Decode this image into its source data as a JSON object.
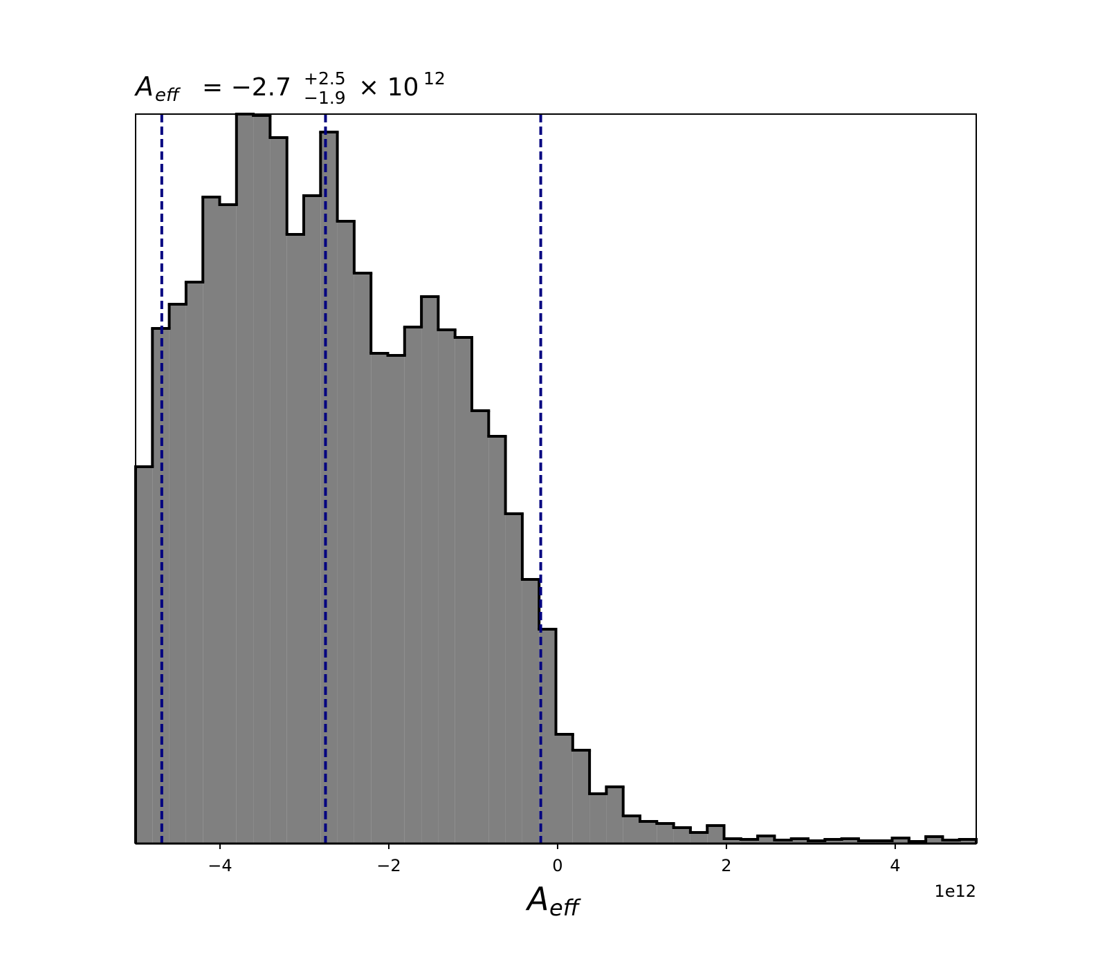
{
  "chart_data": {
    "type": "histogram",
    "title": {
      "symbol": "A",
      "subscript": "eff",
      "equation": "= −2.7",
      "upper": "+2.5",
      "lower": "−1.9",
      "times": "× 10",
      "exponent": "12"
    },
    "x_label": {
      "symbol": "A",
      "subscript": "eff"
    },
    "x_offset_label": "1e12",
    "bins": [
      -5,
      -4.8008,
      -4.6016,
      -4.4024,
      -4.2032,
      -4.004,
      -3.8048,
      -3.6056,
      -3.4064,
      -3.2072,
      -3.008,
      -2.8088,
      -2.6096,
      -2.4104,
      -2.2112,
      -2.012,
      -1.8128,
      -1.6136,
      -1.4144,
      -1.2152,
      -1.016,
      -0.8168,
      -0.6176,
      -0.4184,
      -0.2192,
      -0.02,
      0.1792,
      0.3784,
      0.5776,
      0.7768,
      0.976,
      1.1752,
      1.3744,
      1.5736,
      1.7728,
      1.972,
      2.1712,
      2.3704,
      2.5696,
      2.7688,
      2.968,
      3.1672,
      3.3664,
      3.5656,
      3.7648,
      3.964,
      4.1632,
      4.3624,
      4.5616,
      4.7608,
      4.96
    ],
    "values": [
      545,
      745,
      780,
      812,
      935,
      924,
      1055,
      1053,
      1021,
      881,
      937,
      1029,
      900,
      825,
      709,
      706,
      747,
      791,
      743,
      732,
      626,
      589,
      477,
      382,
      310,
      158,
      135,
      72,
      82,
      40,
      32,
      29,
      23,
      16,
      26,
      7,
      6,
      11,
      5,
      7,
      4,
      6,
      7,
      4,
      4,
      8,
      3,
      10,
      5,
      6
    ],
    "color": "#808080",
    "edge_color": "#000000",
    "vlines": [
      -4.69,
      -2.75,
      -0.2
    ],
    "vline_color": "#000080",
    "xlim": [
      -5,
      4.96
    ],
    "ylim": [
      0,
      1055
    ],
    "xticks": [
      {
        "value": -4,
        "label": "−4"
      },
      {
        "value": -2,
        "label": "−2"
      },
      0,
      2,
      4
    ]
  }
}
